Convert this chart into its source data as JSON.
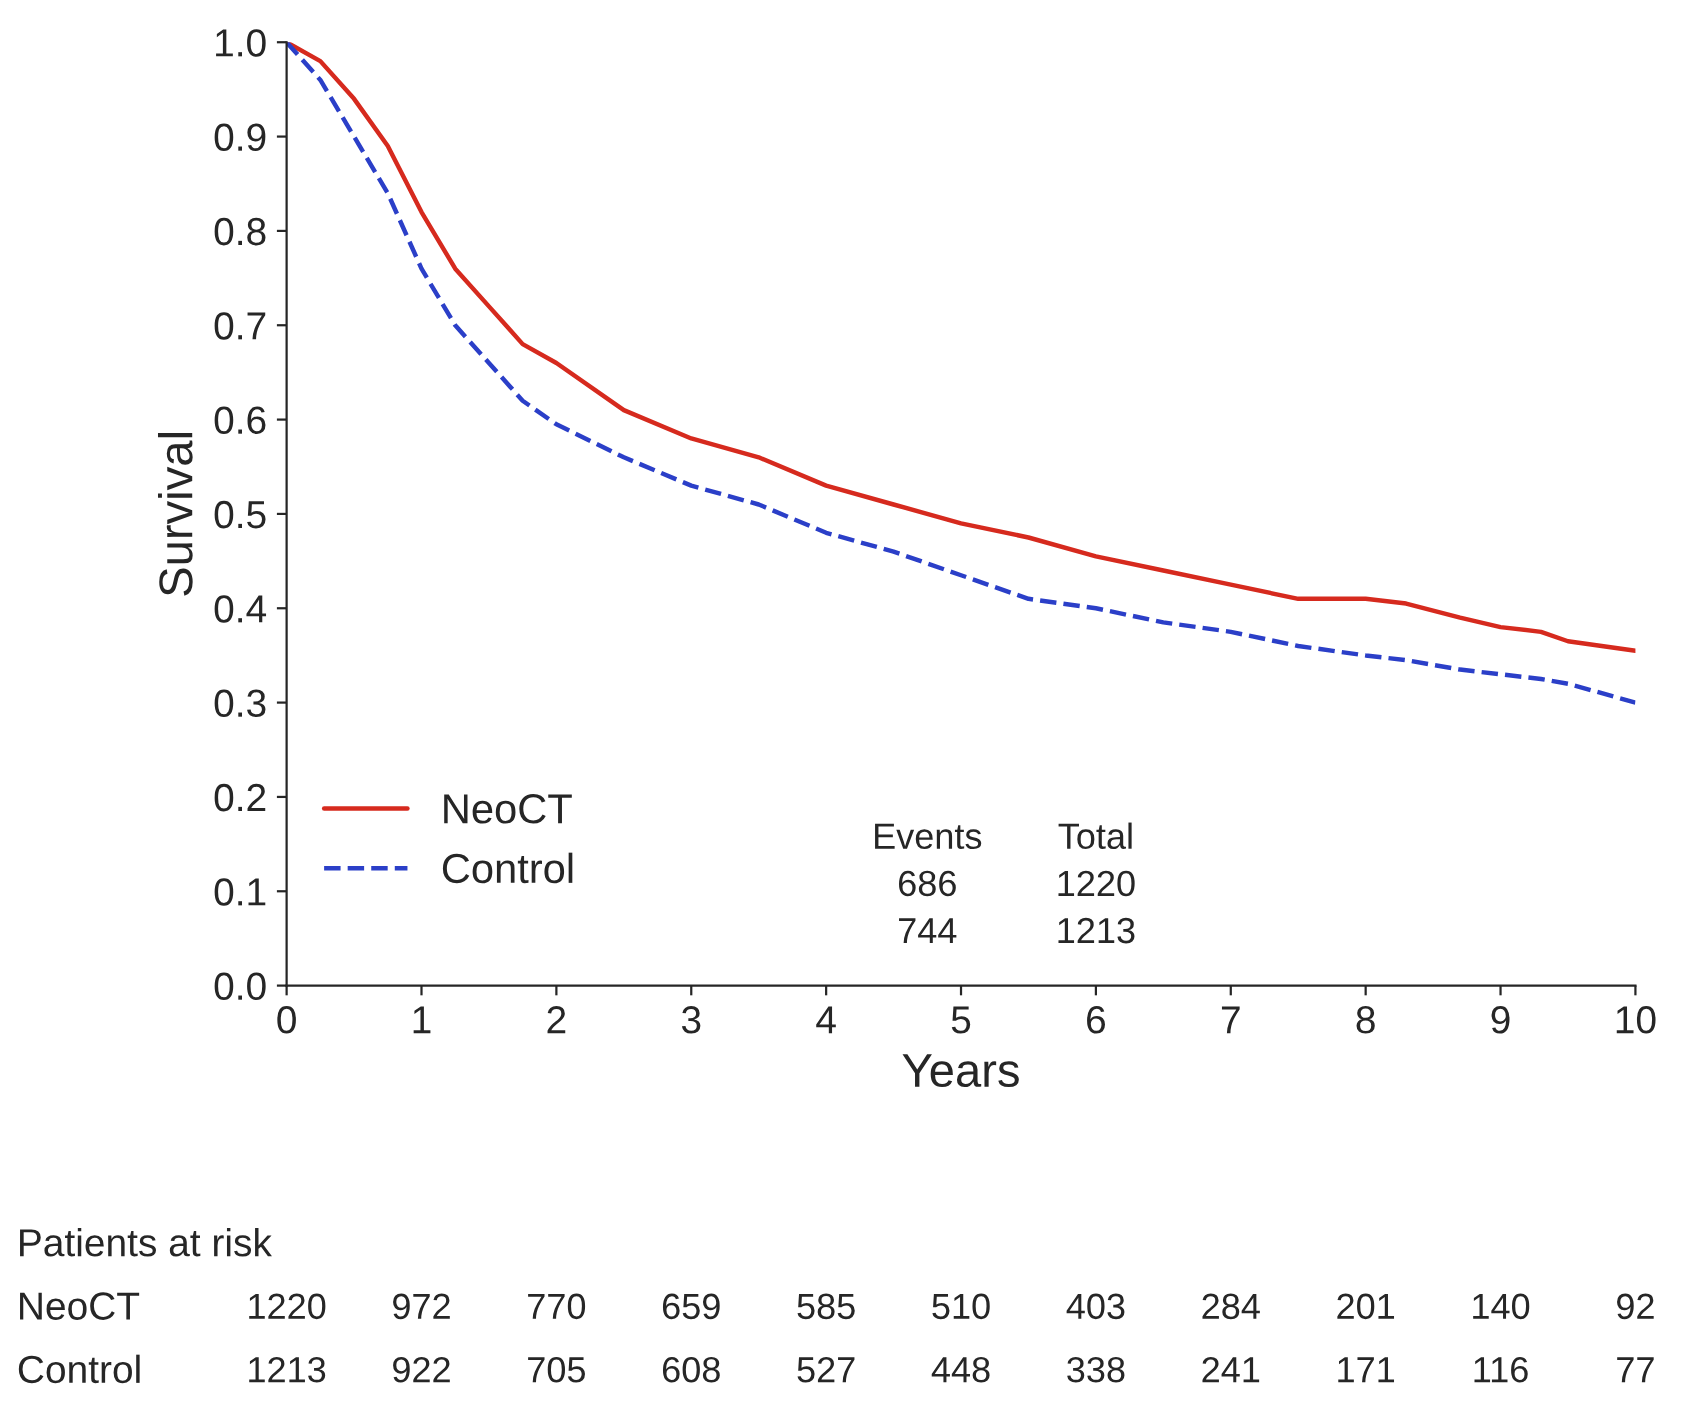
{
  "chart_data": {
    "type": "line",
    "xlabel": "Years",
    "ylabel": "Survival",
    "xlim": [
      0,
      10
    ],
    "ylim": [
      0,
      1
    ],
    "xticks": [
      0,
      1,
      2,
      3,
      4,
      5,
      6,
      7,
      8,
      9,
      10
    ],
    "yticks": [
      {
        "value": 0,
        "label": "0.0"
      },
      0.1,
      0.2,
      0.3,
      0.4,
      0.5,
      0.6,
      0.7,
      0.8,
      0.9,
      {
        "value": 1,
        "label": "1.0"
      }
    ],
    "x": [
      0,
      0.25,
      0.5,
      0.75,
      1,
      1.25,
      1.5,
      1.75,
      2,
      2.5,
      3,
      3.5,
      4,
      4.5,
      5,
      5.5,
      6,
      6.5,
      7,
      7.5,
      8,
      8.3,
      8.7,
      9,
      9.3,
      9.5,
      10
    ],
    "series": [
      {
        "name": "NeoCT",
        "color": "#d62a1e",
        "line_style": "solid",
        "values": [
          1.0,
          0.98,
          0.94,
          0.89,
          0.82,
          0.76,
          0.72,
          0.68,
          0.66,
          0.61,
          0.58,
          0.56,
          0.53,
          0.51,
          0.49,
          0.475,
          0.455,
          0.44,
          0.425,
          0.41,
          0.41,
          0.405,
          0.39,
          0.38,
          0.375,
          0.365,
          0.355
        ]
      },
      {
        "name": "Control",
        "color": "#2b3fc8",
        "line_style": "dashed",
        "values": [
          1.0,
          0.96,
          0.9,
          0.84,
          0.76,
          0.7,
          0.66,
          0.62,
          0.595,
          0.56,
          0.53,
          0.51,
          0.48,
          0.46,
          0.435,
          0.41,
          0.4,
          0.385,
          0.375,
          0.36,
          0.35,
          0.345,
          0.335,
          0.33,
          0.325,
          0.32,
          0.3
        ]
      }
    ],
    "legend": "bottom left",
    "grid": false,
    "marker": "none",
    "annotations": [
      "Events",
      "Total",
      "686",
      "1220",
      "744",
      "1213",
      "Patients at risk",
      "NeoCT",
      "1220",
      "972",
      "770",
      "659",
      "585",
      "510",
      "403",
      "284",
      "201",
      "140",
      "92",
      "Control",
      "1213",
      "922",
      "705",
      "608",
      "527",
      "448",
      "338",
      "241",
      "171",
      "116",
      "77"
    ]
  }
}
